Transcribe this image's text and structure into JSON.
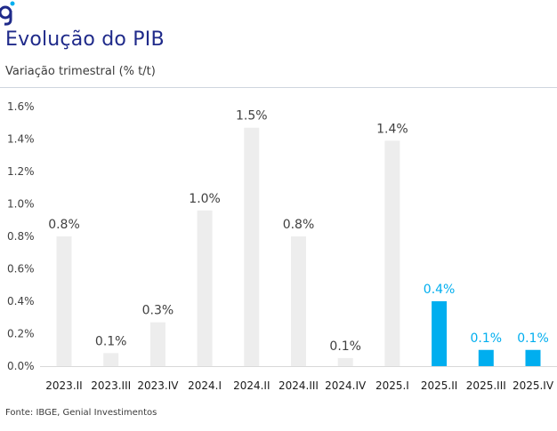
{
  "header": {
    "title": "Evolução do PIB",
    "subtitle": "Variação trimestral (% t/t)"
  },
  "footer": {
    "source": "Fonte: IBGE, Genial Investimentos"
  },
  "colors": {
    "title": "#1f2a8a",
    "bar_default": "#ededed",
    "bar_highlight": "#00aeef",
    "label_default": "#404040",
    "label_highlight": "#00aeef"
  },
  "chart_data": {
    "type": "bar",
    "title": "",
    "xlabel": "",
    "ylabel": "",
    "ylim": [
      0,
      1.6
    ],
    "yticks": [
      0.0,
      0.2,
      0.4,
      0.6,
      0.8,
      1.0,
      1.2,
      1.4,
      1.6
    ],
    "ytick_labels": [
      "0.0%",
      "0.2%",
      "0.4%",
      "0.6%",
      "0.8%",
      "1.0%",
      "1.2%",
      "1.4%",
      "1.6%"
    ],
    "grid": false,
    "categories": [
      "2023.II",
      "2023.III",
      "2023.IV",
      "2024.I",
      "2024.II",
      "2024.III",
      "2024.IV",
      "2025.I",
      "2025.II",
      "2025.III",
      "2025.IV"
    ],
    "values": [
      0.8,
      0.08,
      0.27,
      0.96,
      1.47,
      0.8,
      0.05,
      1.39,
      0.4,
      0.1,
      0.1
    ],
    "data_labels": [
      "0.8%",
      "0.1%",
      "0.3%",
      "1.0%",
      "1.5%",
      "0.8%",
      "0.1%",
      "1.4%",
      "0.4%",
      "0.1%",
      "0.1%"
    ],
    "highlight": [
      false,
      false,
      false,
      false,
      false,
      false,
      false,
      false,
      true,
      true,
      true
    ]
  }
}
